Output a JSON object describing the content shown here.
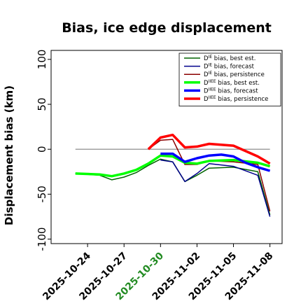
{
  "chart_data": {
    "type": "line",
    "title": "Bias, ice edge displacement",
    "ylabel": "Displacement bias (km)",
    "xlabel": "",
    "ylim": [
      -105,
      110
    ],
    "yticks": [
      -100,
      -50,
      0,
      50,
      100
    ],
    "xticks": [
      "2025-10-24",
      "2025-10-27",
      "2025-10-30",
      "2025-11-02",
      "2025-11-05",
      "2025-11-08"
    ],
    "xtick_colors": [
      "#000000",
      "#000000",
      "#228b22",
      "#000000",
      "#000000",
      "#000000"
    ],
    "xlim": [
      "2025-10-21",
      "2025-11-09"
    ],
    "zero_line": true,
    "grid": false,
    "legend_location": "upper right",
    "series": [
      {
        "name_main": "D",
        "name_sup": "IE",
        "name_rest": " bias, best est.",
        "color": "#006400",
        "width": 1.5,
        "x": [
          "2025-10-23",
          "2025-10-25",
          "2025-10-26",
          "2025-10-27",
          "2025-10-28",
          "2025-10-29",
          "2025-10-30",
          "2025-10-31",
          "2025-11-01",
          "2025-11-02",
          "2025-11-03",
          "2025-11-05",
          "2025-11-07",
          "2025-11-08"
        ],
        "y": [
          -27,
          -29,
          -34,
          -31,
          -26,
          -18,
          -11,
          -14,
          -36,
          -29,
          -21,
          -20,
          -25,
          -73
        ]
      },
      {
        "name_main": "D",
        "name_sup": "IE",
        "name_rest": " bias, forecast",
        "color": "#00008b",
        "width": 1.5,
        "x": [
          "2025-10-30",
          "2025-10-31",
          "2025-11-01",
          "2025-11-02",
          "2025-11-03",
          "2025-11-05",
          "2025-11-07",
          "2025-11-08"
        ],
        "y": [
          -12,
          -14,
          -36,
          -27,
          -16,
          -19,
          -29,
          -75
        ]
      },
      {
        "name_main": "D",
        "name_sup": "IE",
        "name_rest": " bias, persistence",
        "color": "#8b0000",
        "width": 1.5,
        "x": [
          "2025-10-29",
          "2025-10-30",
          "2025-10-31",
          "2025-11-01",
          "2025-11-02",
          "2025-11-03",
          "2025-11-05",
          "2025-11-07",
          "2025-11-08"
        ],
        "y": [
          0,
          10,
          11,
          -17,
          -17,
          -13,
          -14,
          -17,
          -69
        ]
      },
      {
        "name_main": "D",
        "name_sup": "IIEE",
        "name_rest": " bias, best est.",
        "color": "#00ff00",
        "width": 3.5,
        "x": [
          "2025-10-23",
          "2025-10-25",
          "2025-10-26",
          "2025-10-27",
          "2025-10-28",
          "2025-10-29",
          "2025-10-30",
          "2025-10-31",
          "2025-11-01",
          "2025-11-02",
          "2025-11-03",
          "2025-11-05",
          "2025-11-07",
          "2025-11-08"
        ],
        "y": [
          -27,
          -28,
          -30,
          -27,
          -23,
          -16,
          -7,
          -8,
          -15,
          -16,
          -13,
          -12,
          -15,
          -19
        ]
      },
      {
        "name_main": "D",
        "name_sup": "IIEE",
        "name_rest": " bias, forecast",
        "color": "#0000ff",
        "width": 3.5,
        "x": [
          "2025-10-30",
          "2025-10-31",
          "2025-11-01",
          "2025-11-02",
          "2025-11-03",
          "2025-11-04",
          "2025-11-05",
          "2025-11-06",
          "2025-11-07",
          "2025-11-08"
        ],
        "y": [
          -5,
          -5,
          -14,
          -10,
          -7,
          -6,
          -8,
          -15,
          -20,
          -24
        ]
      },
      {
        "name_main": "D",
        "name_sup": "IIEE",
        "name_rest": " bias, persistence",
        "color": "#ff0000",
        "width": 3.5,
        "x": [
          "2025-10-29",
          "2025-10-30",
          "2025-10-31",
          "2025-11-01",
          "2025-11-02",
          "2025-11-03",
          "2025-11-05",
          "2025-11-07",
          "2025-11-08"
        ],
        "y": [
          0,
          13,
          16,
          2,
          3,
          6,
          4,
          -8,
          -16
        ]
      }
    ]
  }
}
